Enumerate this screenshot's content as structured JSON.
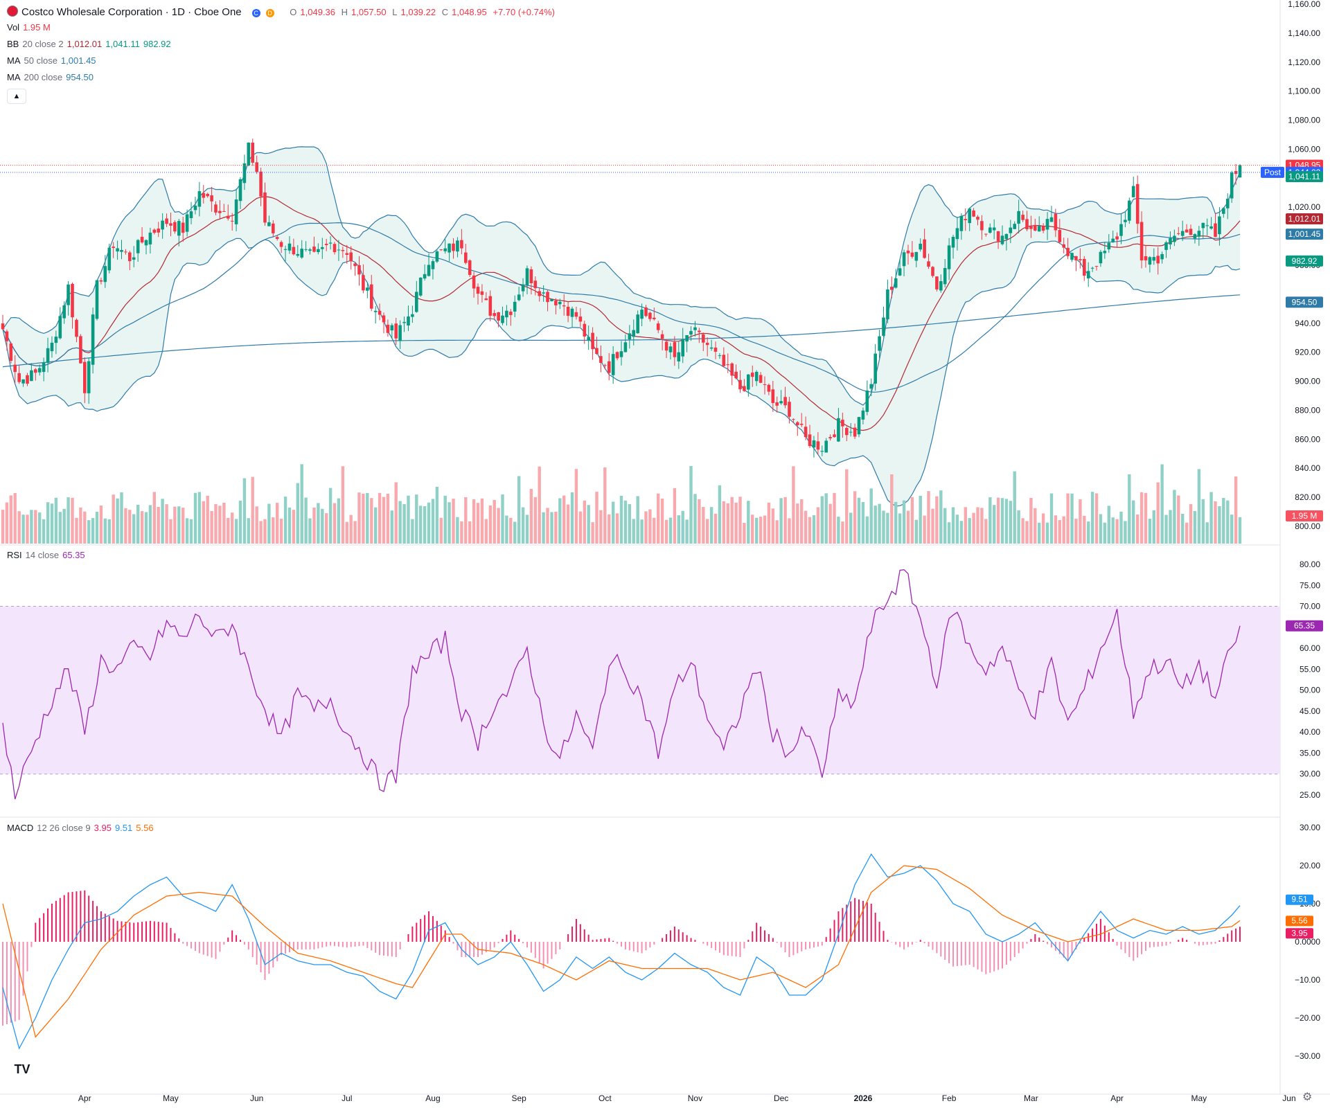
{
  "header": {
    "title": "Costco Wholesale Corporation · 1D · Cboe One",
    "badge_c": "C",
    "badge_d": "D",
    "ohlc": {
      "o_label": "O",
      "o": "1,049.36",
      "h_label": "H",
      "h": "1,057.50",
      "l_label": "L",
      "l": "1,039.22",
      "c_label": "C",
      "c": "1,048.95",
      "change": "+7.70 (+0.74%)"
    }
  },
  "indicators": {
    "vol": {
      "label": "Vol",
      "value": "1.95 M"
    },
    "bb": {
      "label": "BB",
      "params": "20 close 2",
      "basis": "1,012.01",
      "upper": "1,041.11",
      "lower": "982.92"
    },
    "ma50": {
      "label": "MA",
      "params": "50 close",
      "value": "1,001.45"
    },
    "ma200": {
      "label": "MA",
      "params": "200 close",
      "value": "954.50"
    },
    "rsi": {
      "label": "RSI",
      "params": "14 close",
      "value": "65.35"
    },
    "macd": {
      "label": "MACD",
      "params": "12 26 close 9",
      "hist": "3.95",
      "macd": "9.51",
      "signal": "5.56"
    }
  },
  "price_axis": {
    "ticks": [
      "1,160.00",
      "1,140.00",
      "1,120.00",
      "1,100.00",
      "1,080.00",
      "1,060.00",
      "1,020.00",
      "980.00",
      "940.00",
      "920.00",
      "900.00",
      "880.00",
      "860.00",
      "840.00",
      "820.00",
      "800.00"
    ],
    "tick_values": [
      1160,
      1140,
      1120,
      1100,
      1080,
      1060,
      1020,
      980,
      940,
      920,
      900,
      880,
      860,
      840,
      820,
      800
    ],
    "last_labels": [
      {
        "text": "1,048.95",
        "value": 1048.95,
        "color": "#f23645"
      },
      {
        "text": "1,044.02",
        "value": 1044.02,
        "color": "#2962ff"
      },
      {
        "text": "1,041.11",
        "value": 1041.11,
        "color": "#089981"
      },
      {
        "text": "1,012.01",
        "value": 1012.01,
        "color": "#b22833"
      },
      {
        "text": "1,001.45",
        "value": 1001.45,
        "color": "#2f7ba8"
      },
      {
        "text": "982.92",
        "value": 982.92,
        "color": "#089981"
      },
      {
        "text": "954.50",
        "value": 954.5,
        "color": "#2f7ba8"
      },
      {
        "text": "1.95 M",
        "value": null,
        "color": "#f7525f"
      }
    ],
    "post_label": "Post"
  },
  "rsi_axis": {
    "ticks": [
      "80.00",
      "75.00",
      "70.00",
      "65.00",
      "60.00",
      "55.00",
      "50.00",
      "45.00",
      "40.00",
      "35.00",
      "30.00",
      "25.00"
    ],
    "tick_values": [
      80,
      75,
      70,
      65,
      60,
      55,
      50,
      45,
      40,
      35,
      30,
      25
    ]
  },
  "macd_axis": {
    "ticks": [
      "30.00",
      "20.00",
      "10.00",
      "0.0000",
      "−10.00",
      "−20.00",
      "−30.00"
    ],
    "tick_values": [
      30,
      20,
      10,
      0,
      -10,
      -20,
      -30
    ]
  },
  "time_axis": {
    "labels": [
      "Apr",
      "May",
      "Jun",
      "Jul",
      "Aug",
      "Sep",
      "Oct",
      "Nov",
      "Dec",
      "2026",
      "Feb",
      "Mar",
      "Apr",
      "May",
      "Jun"
    ],
    "bar_index": [
      20,
      41,
      62,
      84,
      105,
      126,
      147,
      169,
      190,
      210,
      231,
      251,
      272,
      292,
      314
    ]
  },
  "colors": {
    "up": "#089981",
    "down": "#f23645",
    "bb": "#2f7ba8",
    "bb_fill": "#e9f5f3",
    "ma50": "#2f7ba8",
    "ma20_basis": "#b22833",
    "ma200": "#2f7ba8",
    "rsi": "#9c27b0",
    "rsi_band": "#f3e5fb",
    "macd": "#2196f3",
    "signal": "#ff6d00",
    "hist": "#e91e63"
  },
  "chart_data": {
    "type": "candlestick",
    "title": "Costco Wholesale Corporation · 1D · Cboe One",
    "x_range": [
      "Mar 2025",
      "Jun 2026"
    ],
    "ylim": [
      800,
      1160
    ],
    "anchors": {
      "note_dates": "approx. daily close path across the visible range",
      "close_points": [
        [
          0,
          936
        ],
        [
          4,
          900
        ],
        [
          8,
          905
        ],
        [
          12,
          925
        ],
        [
          16,
          965
        ],
        [
          20,
          895
        ],
        [
          23,
          965
        ],
        [
          27,
          995
        ],
        [
          31,
          985
        ],
        [
          35,
          1000
        ],
        [
          40,
          1010
        ],
        [
          44,
          1005
        ],
        [
          48,
          1030
        ],
        [
          52,
          1020
        ],
        [
          56,
          1015
        ],
        [
          60,
          1060
        ],
        [
          62,
          1045
        ],
        [
          64,
          1010
        ],
        [
          68,
          995
        ],
        [
          72,
          990
        ],
        [
          76,
          985
        ],
        [
          80,
          995
        ],
        [
          84,
          990
        ],
        [
          88,
          965
        ],
        [
          92,
          945
        ],
        [
          96,
          930
        ],
        [
          100,
          950
        ],
        [
          104,
          985
        ],
        [
          108,
          990
        ],
        [
          112,
          995
        ],
        [
          116,
          960
        ],
        [
          120,
          945
        ],
        [
          124,
          950
        ],
        [
          128,
          975
        ],
        [
          132,
          960
        ],
        [
          136,
          955
        ],
        [
          140,
          945
        ],
        [
          144,
          920
        ],
        [
          148,
          910
        ],
        [
          152,
          930
        ],
        [
          156,
          950
        ],
        [
          160,
          935
        ],
        [
          164,
          915
        ],
        [
          168,
          935
        ],
        [
          172,
          925
        ],
        [
          176,
          910
        ],
        [
          180,
          895
        ],
        [
          184,
          905
        ],
        [
          188,
          885
        ],
        [
          192,
          880
        ],
        [
          196,
          860
        ],
        [
          200,
          855
        ],
        [
          204,
          870
        ],
        [
          208,
          865
        ],
        [
          212,
          900
        ],
        [
          216,
          960
        ],
        [
          220,
          985
        ],
        [
          224,
          995
        ],
        [
          228,
          965
        ],
        [
          232,
          1000
        ],
        [
          236,
          1020
        ],
        [
          240,
          1005
        ],
        [
          244,
          1000
        ],
        [
          248,
          1015
        ],
        [
          252,
          1000
        ],
        [
          256,
          1010
        ],
        [
          260,
          990
        ],
        [
          264,
          975
        ],
        [
          268,
          985
        ],
        [
          272,
          1000
        ],
        [
          276,
          1030
        ],
        [
          278,
          985
        ],
        [
          282,
          985
        ],
        [
          286,
          1000
        ],
        [
          290,
          1005
        ],
        [
          294,
          1005
        ],
        [
          296,
          1000
        ],
        [
          300,
          1040
        ],
        [
          302,
          1048.95
        ]
      ]
    },
    "volume_last": "1.95 M",
    "bollinger": {
      "basis": 1012.01,
      "upper": 1041.11,
      "lower": 982.92
    },
    "ma50_last": 1001.45,
    "ma200_last": 954.5,
    "rsi": {
      "ylim": [
        25,
        80
      ],
      "bands": [
        30,
        70
      ],
      "last": 65.35,
      "points": [
        [
          0,
          42
        ],
        [
          3,
          25
        ],
        [
          8,
          38
        ],
        [
          12,
          48
        ],
        [
          16,
          55
        ],
        [
          20,
          40
        ],
        [
          24,
          57
        ],
        [
          28,
          55
        ],
        [
          32,
          60
        ],
        [
          36,
          58
        ],
        [
          40,
          66
        ],
        [
          44,
          62
        ],
        [
          48,
          68
        ],
        [
          52,
          62
        ],
        [
          56,
          66
        ],
        [
          60,
          55
        ],
        [
          64,
          46
        ],
        [
          68,
          38
        ],
        [
          72,
          49
        ],
        [
          76,
          45
        ],
        [
          80,
          48
        ],
        [
          84,
          40
        ],
        [
          88,
          35
        ],
        [
          92,
          28
        ],
        [
          96,
          29
        ],
        [
          100,
          55
        ],
        [
          104,
          58
        ],
        [
          108,
          62
        ],
        [
          112,
          45
        ],
        [
          116,
          38
        ],
        [
          120,
          47
        ],
        [
          124,
          50
        ],
        [
          128,
          60
        ],
        [
          132,
          42
        ],
        [
          136,
          33
        ],
        [
          140,
          44
        ],
        [
          144,
          35
        ],
        [
          148,
          57
        ],
        [
          152,
          55
        ],
        [
          156,
          48
        ],
        [
          160,
          35
        ],
        [
          164,
          50
        ],
        [
          168,
          57
        ],
        [
          172,
          44
        ],
        [
          176,
          35
        ],
        [
          180,
          45
        ],
        [
          184,
          56
        ],
        [
          188,
          40
        ],
        [
          192,
          35
        ],
        [
          196,
          40
        ],
        [
          200,
          30
        ],
        [
          204,
          48
        ],
        [
          208,
          47
        ],
        [
          212,
          65
        ],
        [
          216,
          72
        ],
        [
          220,
          78
        ],
        [
          224,
          67
        ],
        [
          228,
          52
        ],
        [
          232,
          70
        ],
        [
          236,
          60
        ],
        [
          240,
          55
        ],
        [
          244,
          60
        ],
        [
          248,
          50
        ],
        [
          252,
          45
        ],
        [
          256,
          56
        ],
        [
          260,
          42
        ],
        [
          264,
          50
        ],
        [
          268,
          60
        ],
        [
          272,
          68
        ],
        [
          276,
          45
        ],
        [
          280,
          55
        ],
        [
          284,
          57
        ],
        [
          288,
          50
        ],
        [
          292,
          56
        ],
        [
          296,
          48
        ],
        [
          300,
          60
        ],
        [
          302,
          65.35
        ]
      ]
    },
    "macd": {
      "ylim": [
        -32,
        30
      ],
      "last_macd": 9.51,
      "last_signal": 5.56,
      "last_hist": 3.95,
      "macd_points": [
        [
          0,
          -12
        ],
        [
          4,
          -28
        ],
        [
          8,
          -20
        ],
        [
          12,
          -10
        ],
        [
          16,
          -2
        ],
        [
          20,
          5
        ],
        [
          24,
          6
        ],
        [
          28,
          8
        ],
        [
          32,
          12
        ],
        [
          36,
          15
        ],
        [
          40,
          17
        ],
        [
          44,
          12
        ],
        [
          48,
          10
        ],
        [
          52,
          8
        ],
        [
          56,
          15
        ],
        [
          60,
          6
        ],
        [
          64,
          -6
        ],
        [
          68,
          -3
        ],
        [
          72,
          -5
        ],
        [
          76,
          -6
        ],
        [
          80,
          -6
        ],
        [
          84,
          -8
        ],
        [
          88,
          -9
        ],
        [
          92,
          -13
        ],
        [
          96,
          -15
        ],
        [
          100,
          -8
        ],
        [
          104,
          3
        ],
        [
          108,
          5
        ],
        [
          112,
          -2
        ],
        [
          116,
          -6
        ],
        [
          120,
          -4
        ],
        [
          124,
          0
        ],
        [
          128,
          -6
        ],
        [
          132,
          -13
        ],
        [
          136,
          -10
        ],
        [
          140,
          -4
        ],
        [
          144,
          -7
        ],
        [
          148,
          -4
        ],
        [
          152,
          -8
        ],
        [
          156,
          -10
        ],
        [
          160,
          -7
        ],
        [
          164,
          -3
        ],
        [
          168,
          -6
        ],
        [
          172,
          -8
        ],
        [
          176,
          -12
        ],
        [
          180,
          -14
        ],
        [
          184,
          -4
        ],
        [
          188,
          -7
        ],
        [
          192,
          -14
        ],
        [
          196,
          -14
        ],
        [
          200,
          -10
        ],
        [
          204,
          2
        ],
        [
          208,
          15
        ],
        [
          212,
          23
        ],
        [
          216,
          17
        ],
        [
          220,
          18
        ],
        [
          224,
          20
        ],
        [
          228,
          16
        ],
        [
          232,
          10
        ],
        [
          236,
          8
        ],
        [
          240,
          2
        ],
        [
          244,
          0
        ],
        [
          248,
          2
        ],
        [
          252,
          5
        ],
        [
          256,
          0
        ],
        [
          260,
          -5
        ],
        [
          264,
          2
        ],
        [
          268,
          8
        ],
        [
          272,
          3
        ],
        [
          276,
          1
        ],
        [
          280,
          3
        ],
        [
          284,
          2
        ],
        [
          288,
          4
        ],
        [
          292,
          2
        ],
        [
          296,
          3
        ],
        [
          300,
          7
        ],
        [
          302,
          9.51
        ]
      ],
      "signal_points": [
        [
          0,
          10
        ],
        [
          8,
          -25
        ],
        [
          16,
          -15
        ],
        [
          24,
          -2
        ],
        [
          32,
          7
        ],
        [
          40,
          12
        ],
        [
          48,
          13
        ],
        [
          56,
          12
        ],
        [
          64,
          4
        ],
        [
          72,
          -3
        ],
        [
          80,
          -5
        ],
        [
          88,
          -8
        ],
        [
          96,
          -11
        ],
        [
          100,
          -12
        ],
        [
          104,
          -5
        ],
        [
          108,
          2
        ],
        [
          112,
          2
        ],
        [
          116,
          -2
        ],
        [
          124,
          -3
        ],
        [
          132,
          -6
        ],
        [
          140,
          -10
        ],
        [
          148,
          -5
        ],
        [
          156,
          -7
        ],
        [
          164,
          -7
        ],
        [
          172,
          -7
        ],
        [
          180,
          -10
        ],
        [
          188,
          -8
        ],
        [
          196,
          -12
        ],
        [
          204,
          -6
        ],
        [
          212,
          13
        ],
        [
          220,
          20
        ],
        [
          228,
          19
        ],
        [
          236,
          14
        ],
        [
          244,
          7
        ],
        [
          252,
          3
        ],
        [
          260,
          0
        ],
        [
          268,
          2
        ],
        [
          276,
          6
        ],
        [
          284,
          3
        ],
        [
          292,
          3
        ],
        [
          300,
          4
        ],
        [
          302,
          5.56
        ]
      ]
    }
  }
}
